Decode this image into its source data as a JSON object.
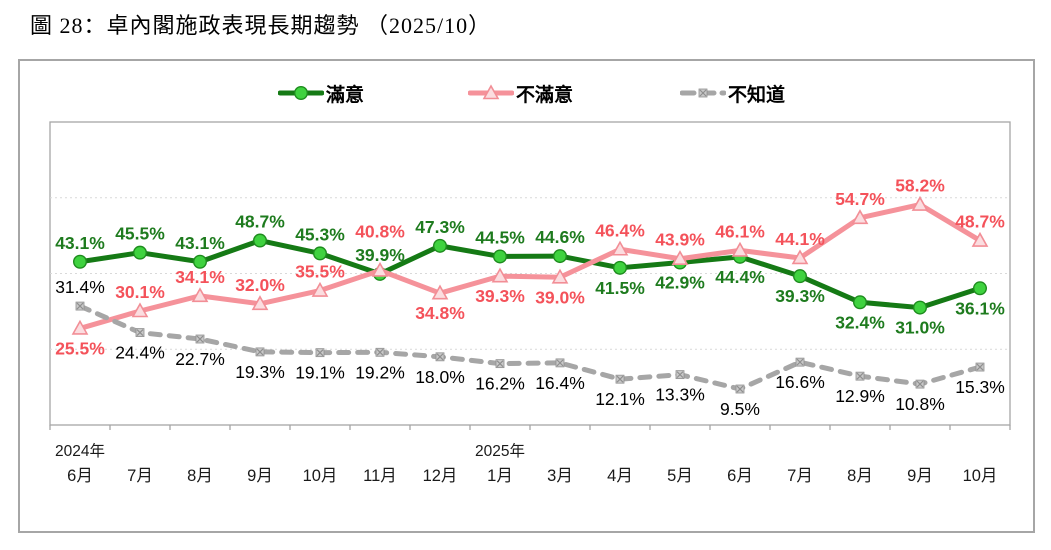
{
  "title": "圖 28：卓內閣施政表現長期趨勢 （2025/10）",
  "chart_data": {
    "type": "line",
    "categories": [
      "6月",
      "7月",
      "8月",
      "9月",
      "10月",
      "11月",
      "12月",
      "1月",
      "3月",
      "4月",
      "5月",
      "6月",
      "7月",
      "8月",
      "9月",
      "10月"
    ],
    "year_labels": [
      {
        "text": "2024年",
        "month_index": 0
      },
      {
        "text": "2025年",
        "month_index": 7
      }
    ],
    "ylim": [
      0,
      80
    ],
    "gridlines": [
      20,
      40,
      60
    ],
    "grid_color": "#d9d9d9",
    "axis_color": "#a6a6a6",
    "series": [
      {
        "name": "滿意",
        "key": "satisfied",
        "marker": "circle",
        "line_color": "#157a15",
        "marker_fill": "#3fd23f",
        "marker_stroke": "#1e8c1e",
        "label_color": "#1e7b1e",
        "label_bold": true,
        "dashed": false,
        "values": [
          43.1,
          45.5,
          43.1,
          48.7,
          45.3,
          39.9,
          47.3,
          44.5,
          44.6,
          41.5,
          42.9,
          44.4,
          39.3,
          32.4,
          31.0,
          36.1
        ],
        "label_sides": [
          "above",
          "above",
          "above",
          "above",
          "above",
          "above",
          "above",
          "above",
          "above",
          "below",
          "below",
          "below",
          "below",
          "below",
          "below",
          "below"
        ],
        "label_dy": [
          0,
          0,
          0,
          0,
          0,
          0,
          0,
          0,
          0,
          0,
          0,
          0,
          0,
          0,
          0,
          0
        ]
      },
      {
        "name": "不滿意",
        "key": "dissatisfied",
        "marker": "triangle",
        "line_color": "#f5929a",
        "marker_fill": "#fbdde0",
        "marker_stroke": "#f28e96",
        "label_color": "#f4525a",
        "label_bold": true,
        "dashed": false,
        "values": [
          25.5,
          30.1,
          34.1,
          32.0,
          35.5,
          40.8,
          34.8,
          39.3,
          39.0,
          46.4,
          43.9,
          46.1,
          44.1,
          54.7,
          58.2,
          48.7
        ],
        "label_sides": [
          "below",
          "above",
          "above",
          "above",
          "above",
          "above",
          "below",
          "below",
          "below",
          "above",
          "above",
          "above",
          "above",
          "above",
          "above",
          "above"
        ],
        "label_dy": [
          0,
          0,
          0,
          0,
          0,
          -20,
          0,
          0,
          0,
          0,
          0,
          0,
          0,
          0,
          0,
          0
        ]
      },
      {
        "name": "不知道",
        "key": "unknown",
        "marker": "square-x",
        "line_color": "#a6a6a6",
        "marker_fill": "#c9c9c9",
        "marker_stroke": "#8f8f8f",
        "label_color": "#000000",
        "label_bold": false,
        "dashed": true,
        "values": [
          31.4,
          24.4,
          22.7,
          19.3,
          19.1,
          19.2,
          18.0,
          16.2,
          16.4,
          12.1,
          13.3,
          9.5,
          16.6,
          12.9,
          10.8,
          15.3
        ],
        "label_sides": [
          "above",
          "below",
          "below",
          "below",
          "below",
          "below",
          "below",
          "below",
          "below",
          "below",
          "below",
          "below",
          "below",
          "below",
          "below",
          "below"
        ],
        "label_dy": [
          0,
          0,
          0,
          0,
          0,
          0,
          0,
          0,
          0,
          0,
          0,
          0,
          0,
          0,
          0,
          0
        ]
      }
    ]
  }
}
